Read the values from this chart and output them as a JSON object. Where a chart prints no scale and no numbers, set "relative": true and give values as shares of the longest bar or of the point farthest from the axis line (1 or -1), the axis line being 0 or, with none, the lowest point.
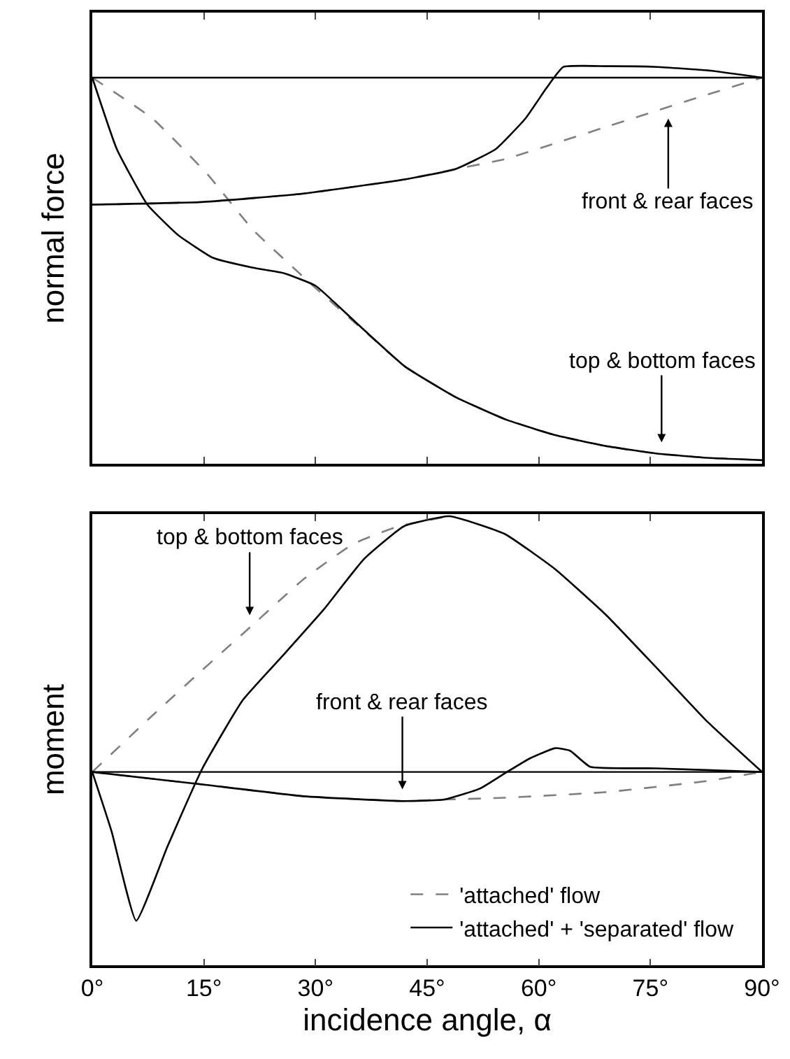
{
  "chart_data": [
    {
      "type": "line",
      "ylabel": "normal force",
      "relative": true,
      "xlim": [
        0,
        90
      ],
      "xticks": [
        {
          "value": 0,
          "label": null
        },
        {
          "value": 15,
          "label": null
        },
        {
          "value": 30,
          "label": null
        },
        {
          "value": 45,
          "label": null
        },
        {
          "value": 60,
          "label": null
        },
        {
          "value": 75,
          "label": null
        },
        {
          "value": 90,
          "label": null
        }
      ],
      "tick_labels": false,
      "grid": false,
      "legend": false,
      "marker": "none",
      "series": [
        {
          "color": "#808080",
          "line_style": "dashed",
          "x": [
            0,
            8.1,
            15.5,
            21.6,
            30,
            36.6,
            42,
            48.8,
            55.6,
            62.3,
            69,
            75.9,
            82.7,
            90
          ],
          "values": [
            0,
            -0.107,
            -0.253,
            -0.398,
            -0.55,
            -0.663,
            -0.755,
            -0.835,
            -0.894,
            -0.935,
            -0.963,
            -0.983,
            -0.994,
            -1
          ]
        },
        {
          "color": "#000000",
          "line_style": "solid",
          "x": [
            0,
            3.3,
            7.4,
            11.5,
            16.2,
            21.6,
            25.7,
            30,
            35.2,
            42,
            48.8,
            55.6,
            62.3,
            69,
            75.9,
            82.7,
            90
          ],
          "values": [
            0,
            -0.187,
            -0.332,
            -0.411,
            -0.471,
            -0.497,
            -0.511,
            -0.544,
            -0.636,
            -0.755,
            -0.835,
            -0.894,
            -0.935,
            -0.963,
            -0.983,
            -0.994,
            -1
          ]
        },
        {
          "color": "#808080",
          "line_style": "dashed",
          "x": [
            0,
            14.9,
            28.4,
            42,
            48.8,
            55.5,
            62.3,
            69,
            75.9,
            82.7,
            90
          ],
          "values": [
            -0.332,
            -0.325,
            -0.303,
            -0.266,
            -0.239,
            -0.213,
            -0.171,
            -0.129,
            -0.086,
            -0.044,
            0
          ]
        },
        {
          "color": "#000000",
          "line_style": "solid",
          "x": [
            0,
            14.9,
            28.4,
            42,
            48.8,
            54.2,
            58.2,
            61,
            63.3,
            69,
            75.9,
            82.7,
            90
          ],
          "values": [
            -0.332,
            -0.325,
            -0.303,
            -0.266,
            -0.239,
            -0.187,
            -0.107,
            -0.028,
            0.028,
            0.03,
            0.028,
            0.019,
            0
          ]
        }
      ],
      "ref_lines": [
        {
          "axis": "y",
          "value": 0,
          "color": "#000000"
        }
      ],
      "annotations": [
        "front & rear faces",
        "top & bottom faces"
      ]
    },
    {
      "type": "line",
      "xlabel": "incidence angle, α",
      "ylabel": "moment",
      "relative": true,
      "xlim": [
        0,
        90
      ],
      "xticks": [
        {
          "value": 0,
          "label": "0°"
        },
        {
          "value": 15,
          "label": "15°"
        },
        {
          "value": 30,
          "label": "30°"
        },
        {
          "value": 45,
          "label": "45°"
        },
        {
          "value": 60,
          "label": "60°"
        },
        {
          "value": 75,
          "label": "75°"
        },
        {
          "value": 90,
          "label": "90°"
        }
      ],
      "tick_labels": "x",
      "grid": false,
      "legend": "bottom right",
      "marker": "none",
      "series": [
        {
          "name": "'attached' flow",
          "color": "#808080",
          "line_style": "dashed",
          "x": [
            0,
            8.1,
            14.8,
            21.6,
            28.4,
            35.1,
            41.2,
            48
          ],
          "values": [
            0,
            0.221,
            0.399,
            0.576,
            0.754,
            0.892,
            0.961,
            1
          ]
        },
        {
          "name": "'attached' + 'separated' flow",
          "color": "#000000",
          "line_style": "solid",
          "x": [
            0,
            2.6,
            5.9,
            10.1,
            14.8,
            20.2,
            25.7,
            31.1,
            36.5,
            41.9,
            48,
            55.4,
            62.2,
            69,
            75.8,
            82.5,
            90
          ],
          "values": [
            0,
            -0.233,
            -0.582,
            -0.292,
            0.014,
            0.28,
            0.458,
            0.635,
            0.832,
            0.961,
            1,
            0.931,
            0.793,
            0.615,
            0.408,
            0.201,
            0
          ]
        },
        {
          "color": "#808080",
          "line_style": "dashed",
          "x": [
            0,
            14.8,
            28.4,
            41.9,
            47.3,
            55.4,
            69,
            82.5,
            90
          ],
          "values": [
            0,
            -0.049,
            -0.095,
            -0.114,
            -0.108,
            -0.101,
            -0.079,
            -0.036,
            0
          ]
        },
        {
          "color": "#000000",
          "line_style": "solid",
          "x": [
            0,
            14.8,
            28.4,
            41.9,
            47.3,
            52.1,
            55.4,
            58.8,
            62.2,
            64.2,
            66.9,
            75.8,
            90
          ],
          "values": [
            0,
            -0.049,
            -0.095,
            -0.114,
            -0.108,
            -0.065,
            -0.006,
            0.053,
            0.093,
            0.083,
            0.02,
            0.014,
            0
          ]
        }
      ],
      "ref_lines": [
        {
          "axis": "y",
          "value": 0,
          "color": "#000000"
        }
      ],
      "annotations": [
        "top & bottom faces",
        "front & rear faces"
      ]
    }
  ]
}
